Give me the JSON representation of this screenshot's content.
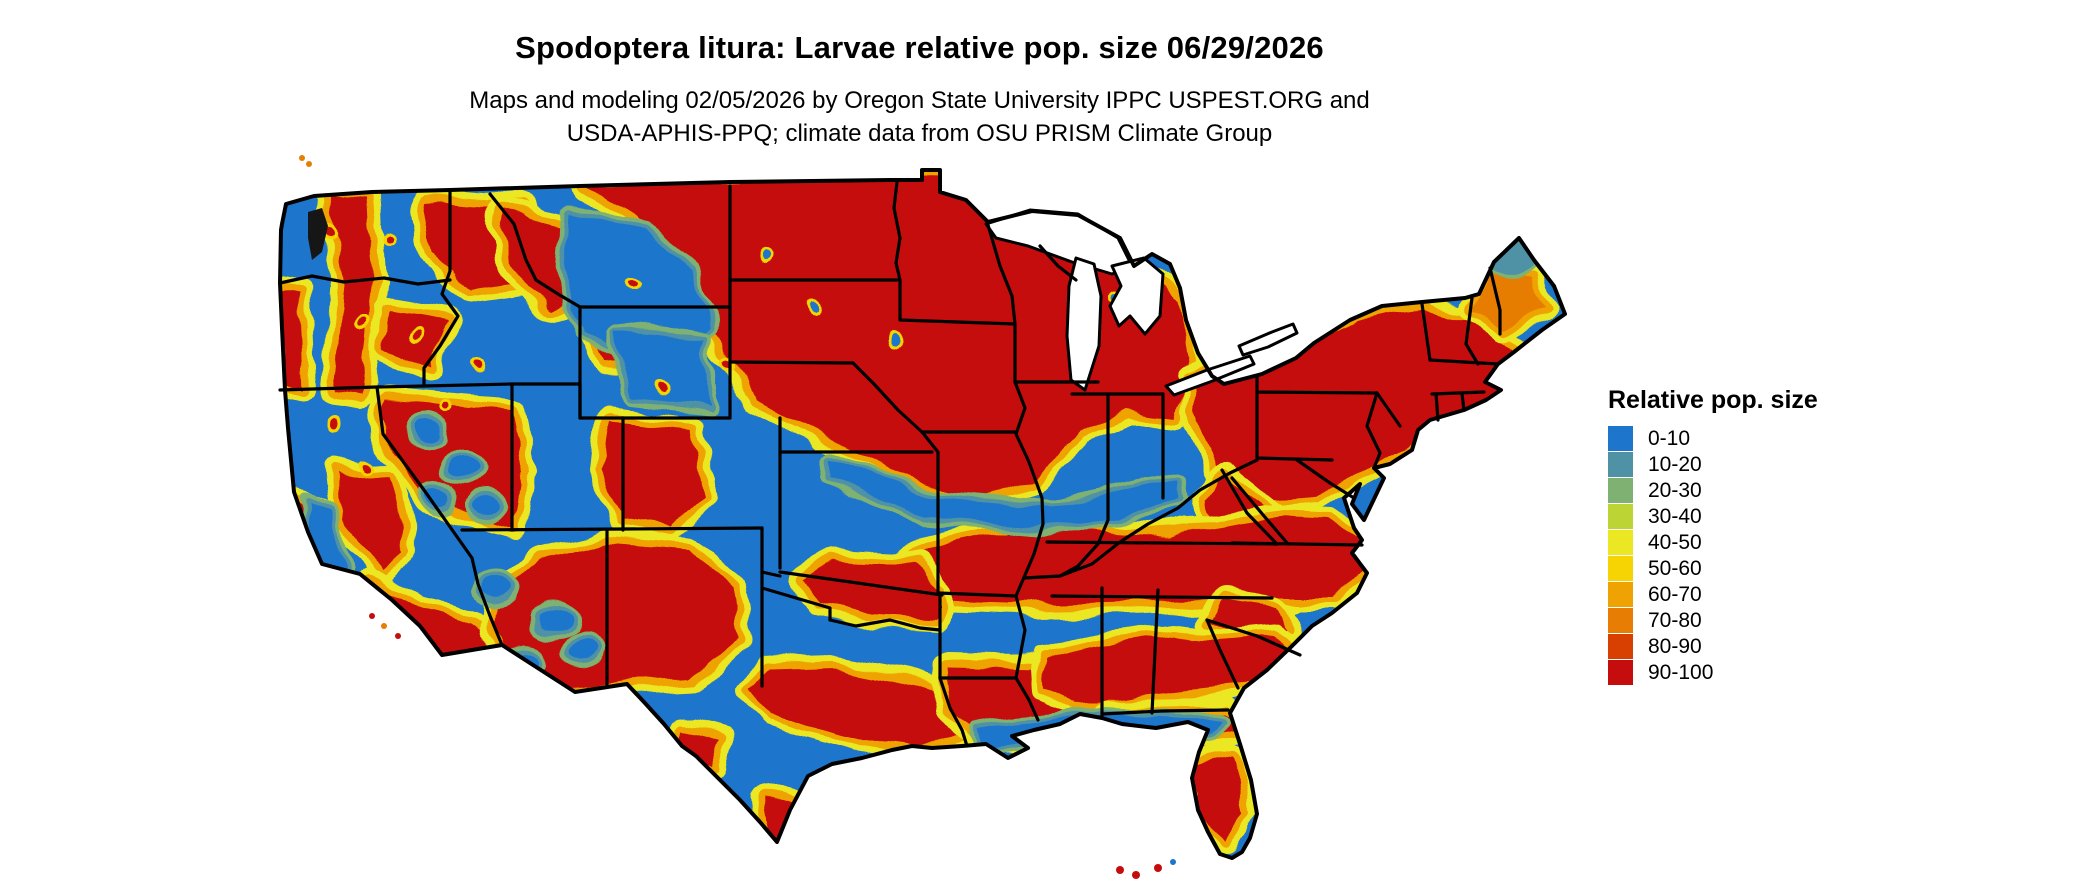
{
  "title": "Spodoptera litura: Larvae relative pop. size 06/29/2026",
  "subtitle": {
    "line1": "Maps and modeling 02/05/2026 by Oregon State University IPPC USPEST.ORG and",
    "line2": "USDA-APHIS-PPQ; climate data from OSU PRISM Climate Group"
  },
  "legend": {
    "title": "Relative pop. size",
    "bins": [
      {
        "label": "0-10",
        "color": "#1d76cc"
      },
      {
        "label": "10-20",
        "color": "#4f92a6"
      },
      {
        "label": "20-30",
        "color": "#7fb272"
      },
      {
        "label": "30-40",
        "color": "#bcd535"
      },
      {
        "label": "40-50",
        "color": "#ebe723"
      },
      {
        "label": "50-60",
        "color": "#f6d404"
      },
      {
        "label": "60-70",
        "color": "#efa303"
      },
      {
        "label": "70-80",
        "color": "#e77d02"
      },
      {
        "label": "80-90",
        "color": "#d84002"
      },
      {
        "label": "90-100",
        "color": "#c60d0d"
      }
    ]
  },
  "map": {
    "name": "contiguous-united-states-raster",
    "outline_color": "#000000",
    "lake_color": "#ffffff",
    "background_color": "#ffffff",
    "base_bin": "0-10",
    "regions_summary": [
      {
        "region": "Pacific Northwest and interior Northwest valleys",
        "dominant_bin": "0-10"
      },
      {
        "region": "Cascades, Sierra Nevada, Great Basin and Rockies highlands",
        "dominant_bin": "90-100"
      },
      {
        "region": "Northern Plains, Upper Midwest and Great Lakes states",
        "dominant_bin": "90-100"
      },
      {
        "region": "Central Plains, Ohio Valley and mid-Mississippi valley",
        "dominant_bin": "0-10"
      },
      {
        "region": "Ozarks, Tennessee Valley, Virginia and North Carolina piedmont",
        "dominant_bin": "90-100"
      },
      {
        "region": "Oklahoma and central Texas",
        "dominant_bin": "90-100"
      },
      {
        "region": "Gulf coastal plain belt through Louisiana, Mississippi, Alabama, Georgia",
        "dominant_bin": "90-100"
      },
      {
        "region": "Gulf and Atlantic immediate coastal strips",
        "dominant_bin": "0-10"
      },
      {
        "region": "Central Florida and Florida panhandle",
        "dominant_bin": "90-100"
      },
      {
        "region": "New York, Pennsylvania and southern New England",
        "dominant_bin": "90-100"
      },
      {
        "region": "Northern Maine",
        "dominant_bin": "0-10"
      }
    ]
  }
}
